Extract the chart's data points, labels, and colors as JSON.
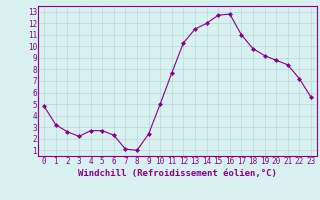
{
  "x": [
    0,
    1,
    2,
    3,
    4,
    5,
    6,
    7,
    8,
    9,
    10,
    11,
    12,
    13,
    14,
    15,
    16,
    17,
    18,
    19,
    20,
    21,
    22,
    23
  ],
  "y": [
    4.8,
    3.2,
    2.6,
    2.2,
    2.7,
    2.7,
    2.3,
    1.1,
    1.0,
    2.4,
    5.0,
    7.7,
    10.3,
    11.5,
    12.0,
    12.7,
    12.8,
    11.0,
    9.8,
    9.2,
    8.8,
    8.4,
    7.2,
    5.6
  ],
  "line_color": "#880088",
  "marker": "D",
  "marker_size": 2.0,
  "bg_color": "#d8f0f0",
  "grid_color": "#b8d8d8",
  "xlabel": "Windchill (Refroidissement éolien,°C)",
  "xlim": [
    -0.5,
    23.5
  ],
  "ylim": [
    0.5,
    13.5
  ],
  "yticks": [
    1,
    2,
    3,
    4,
    5,
    6,
    7,
    8,
    9,
    10,
    11,
    12,
    13
  ],
  "xticks": [
    0,
    1,
    2,
    3,
    4,
    5,
    6,
    7,
    8,
    9,
    10,
    11,
    12,
    13,
    14,
    15,
    16,
    17,
    18,
    19,
    20,
    21,
    22,
    23
  ],
  "tick_color": "#880088",
  "label_color": "#880088",
  "spine_color": "#880088",
  "tick_fontsize": 5.5,
  "xlabel_fontsize": 6.5
}
